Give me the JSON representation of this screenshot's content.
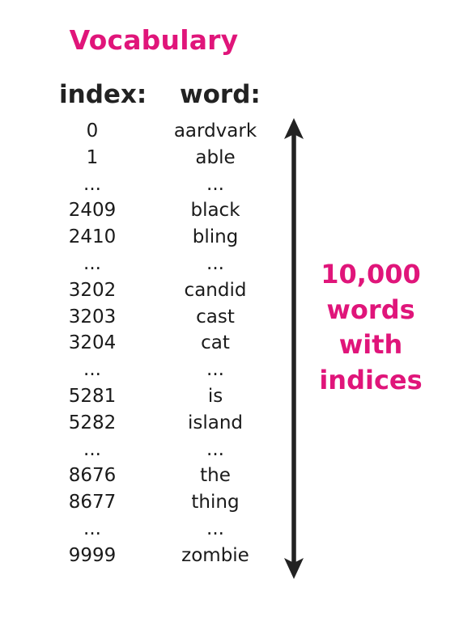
{
  "title": "Vocabulary",
  "headers": {
    "index": "index:",
    "word": "word:"
  },
  "rows": [
    {
      "index": "0",
      "word": "aardvark"
    },
    {
      "index": "1",
      "word": "able"
    },
    {
      "index": "...",
      "word": "..."
    },
    {
      "index": "2409",
      "word": "black"
    },
    {
      "index": "2410",
      "word": "bling"
    },
    {
      "index": "...",
      "word": "..."
    },
    {
      "index": "3202",
      "word": "candid"
    },
    {
      "index": "3203",
      "word": "cast"
    },
    {
      "index": "3204",
      "word": "cat"
    },
    {
      "index": "...",
      "word": "..."
    },
    {
      "index": "5281",
      "word": "is"
    },
    {
      "index": "5282",
      "word": "island"
    },
    {
      "index": "...",
      "word": "..."
    },
    {
      "index": "8676",
      "word": "the"
    },
    {
      "index": "8677",
      "word": "thing"
    },
    {
      "index": "...",
      "word": "..."
    },
    {
      "index": "9999",
      "word": "zombie"
    }
  ],
  "side_label": [
    "10,000",
    "words",
    "with",
    "indices"
  ],
  "colors": {
    "accent": "#e0157a",
    "text": "#1a1a1a",
    "arrow": "#222222"
  }
}
